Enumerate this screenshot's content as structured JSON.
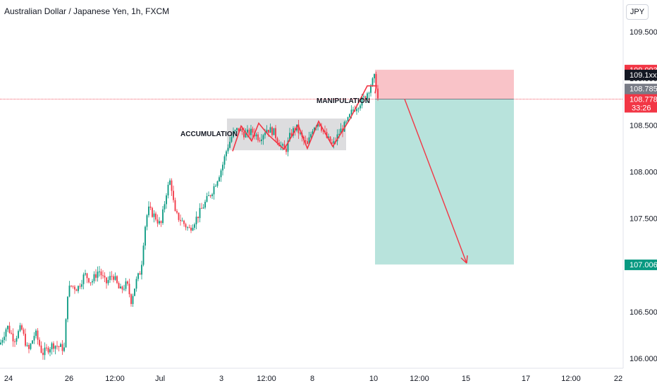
{
  "header": {
    "title": "Australian Dollar / Japanese Yen, 1h, FXCM",
    "currency_button": "JPY"
  },
  "colors": {
    "up": "#089981",
    "down": "#f23645",
    "loss_zone": "#f8bcc2",
    "profit_zone": "#b8e3dc",
    "accumulation_box": "#d7d7d9",
    "drawing": "#f23645"
  },
  "chart_data": {
    "type": "candlestick",
    "symbol": "AUDJPY",
    "interval": "1h",
    "ylim": [
      105.95,
      109.72
    ],
    "y_ticks": [
      "109.500",
      "109.000",
      "108.500",
      "108.000",
      "107.500",
      "107.000",
      "106.500",
      "106.000"
    ],
    "x_ticks": [
      "24",
      "26",
      "12:00",
      "Jul",
      "3",
      "12:00",
      "8",
      "10",
      "12:00",
      "15",
      "17",
      "12:00",
      "22"
    ],
    "price_path": [
      [
        0,
        106.15
      ],
      [
        10,
        106.35
      ],
      [
        20,
        106.2
      ],
      [
        30,
        106.33
      ],
      [
        40,
        106.07
      ],
      [
        50,
        106.28
      ],
      [
        60,
        106.05
      ],
      [
        75,
        106.15
      ],
      [
        92,
        106.1
      ],
      [
        95,
        106.68
      ],
      [
        100,
        106.78
      ],
      [
        110,
        106.75
      ],
      [
        120,
        106.9
      ],
      [
        130,
        106.82
      ],
      [
        140,
        106.95
      ],
      [
        150,
        106.8
      ],
      [
        160,
        106.9
      ],
      [
        170,
        106.72
      ],
      [
        180,
        106.8
      ],
      [
        186,
        106.62
      ],
      [
        193,
        106.82
      ],
      [
        200,
        106.95
      ],
      [
        205,
        107.38
      ],
      [
        210,
        107.6
      ],
      [
        220,
        107.52
      ],
      [
        228,
        107.42
      ],
      [
        236,
        107.78
      ],
      [
        242,
        107.92
      ],
      [
        248,
        107.55
      ],
      [
        258,
        107.47
      ],
      [
        268,
        107.38
      ],
      [
        280,
        107.52
      ],
      [
        292,
        107.68
      ],
      [
        300,
        107.78
      ],
      [
        308,
        107.92
      ],
      [
        315,
        108.05
      ],
      [
        322,
        108.25
      ],
      [
        330,
        108.4
      ],
      [
        338,
        108.46
      ],
      [
        348,
        108.4
      ],
      [
        358,
        108.43
      ],
      [
        368,
        108.36
      ],
      [
        378,
        108.46
      ],
      [
        388,
        108.43
      ],
      [
        398,
        108.28
      ],
      [
        405,
        108.22
      ],
      [
        412,
        108.4
      ],
      [
        420,
        108.48
      ],
      [
        428,
        108.36
      ],
      [
        436,
        108.28
      ],
      [
        444,
        108.48
      ],
      [
        452,
        108.54
      ],
      [
        462,
        108.38
      ],
      [
        472,
        108.28
      ],
      [
        482,
        108.43
      ],
      [
        492,
        108.52
      ],
      [
        500,
        108.66
      ],
      [
        508,
        108.72
      ],
      [
        518,
        108.8
      ],
      [
        526,
        108.93
      ],
      [
        532,
        109.02
      ],
      [
        536,
        108.78
      ]
    ],
    "annotations": [
      "ACCUMULATION",
      "MANIPULATION"
    ],
    "accumulation_range": [
      108.23,
      108.57
    ],
    "zigzag": [
      [
        330,
        108.22
      ],
      [
        342,
        108.49
      ],
      [
        357,
        108.33
      ],
      [
        367,
        108.52
      ],
      [
        380,
        108.4
      ],
      [
        403,
        108.24
      ],
      [
        423,
        108.5
      ],
      [
        436,
        108.25
      ],
      [
        452,
        108.54
      ],
      [
        472,
        108.27
      ],
      [
        496,
        108.56
      ],
      [
        510,
        108.76
      ],
      [
        521,
        108.92
      ],
      [
        534,
        108.92
      ],
      [
        532,
        108.84
      ]
    ],
    "position": {
      "type": "short",
      "stop": 109.093,
      "entry": 108.778,
      "target": 107.006
    },
    "projection_arrow": {
      "from": [
        574,
        108.778
      ],
      "to": [
        662,
        107.02
      ]
    },
    "price_tags": [
      {
        "label": "109.093",
        "color": "#f23645",
        "price": 109.093
      },
      {
        "label": "109.1xx",
        "color": "#131722",
        "price": 109.04
      },
      {
        "label": "108.785",
        "color": "#787b86",
        "price": 108.89
      },
      {
        "label": "108.778",
        "sub": "33:26",
        "color": "#f23645",
        "price": 108.778
      },
      {
        "label": "107.006",
        "color": "#089981",
        "price": 107.006
      }
    ]
  }
}
